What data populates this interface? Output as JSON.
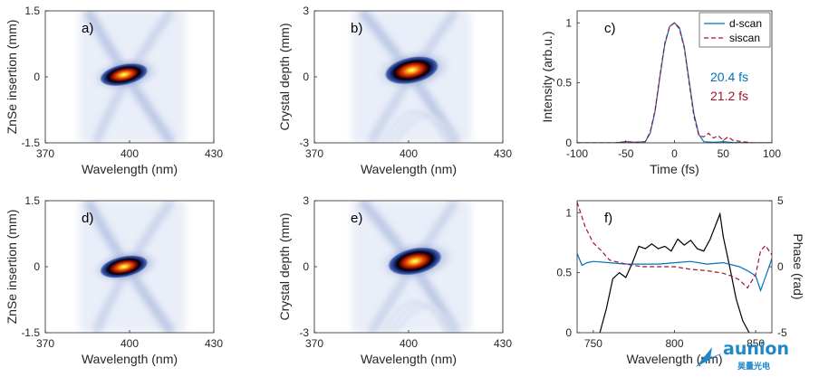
{
  "chart_data": [
    {
      "panel": "a)",
      "type": "heatmap",
      "xlabel": "Wavelength (nm)",
      "ylabel": "ZnSe insertion (mm)",
      "xlim": [
        370,
        430
      ],
      "ylim": [
        -1.5,
        1.5
      ],
      "xticks": [
        "370",
        "400",
        "430"
      ],
      "yticks": [
        "1.5",
        "0",
        "-1.5"
      ],
      "peak": {
        "x": 398,
        "y": 0.05
      }
    },
    {
      "panel": "b)",
      "type": "heatmap",
      "xlabel": "Wavelength (nm)",
      "ylabel": "Crystal depth (mm)",
      "xlim": [
        370,
        430
      ],
      "ylim": [
        -3,
        3
      ],
      "xticks": [
        "370",
        "400",
        "430"
      ],
      "yticks": [
        "3",
        "0",
        "-3"
      ],
      "peak": {
        "x": 401,
        "y": 0.3
      }
    },
    {
      "panel": "c)",
      "type": "line",
      "xlabel": "Time (fs)",
      "ylabel": "Intensity (arb.u.)",
      "xlim": [
        -100,
        100
      ],
      "ylim": [
        0,
        1.1
      ],
      "xticks": [
        "-100",
        "-50",
        "0",
        "50",
        "100"
      ],
      "yticks": [
        "1",
        "0.5",
        "0"
      ],
      "legend": [
        "d-scan",
        "siscan"
      ],
      "annotations": [
        {
          "text": "20.4 fs",
          "color": "#0072BD"
        },
        {
          "text": "21.2 fs",
          "color": "#A2142F"
        }
      ],
      "series": [
        {
          "name": "d-scan",
          "color": "#0072BD",
          "style": "solid",
          "x": [
            -100,
            -80,
            -60,
            -50,
            -40,
            -30,
            -25,
            -20,
            -15,
            -10,
            -5,
            0,
            5,
            10,
            15,
            20,
            25,
            30,
            40,
            50,
            60,
            80,
            100
          ],
          "y": [
            0,
            0,
            0,
            0.01,
            0.005,
            0.01,
            0.08,
            0.26,
            0.55,
            0.82,
            0.97,
            1.0,
            0.96,
            0.8,
            0.52,
            0.24,
            0.07,
            0.01,
            0.005,
            0.01,
            0.003,
            0,
            0
          ]
        },
        {
          "name": "siscan",
          "color": "#A2142F",
          "style": "dashed",
          "x": [
            -100,
            -80,
            -60,
            -50,
            -40,
            -30,
            -25,
            -20,
            -15,
            -10,
            -5,
            0,
            5,
            10,
            15,
            20,
            25,
            30,
            35,
            40,
            45,
            50,
            55,
            60,
            70,
            80,
            100
          ],
          "y": [
            0,
            0,
            0,
            0.01,
            0.005,
            0.01,
            0.09,
            0.27,
            0.56,
            0.83,
            0.97,
            1.0,
            0.95,
            0.79,
            0.5,
            0.22,
            0.06,
            0.05,
            0.08,
            0.04,
            0.06,
            0.02,
            0.05,
            0.02,
            0.01,
            0,
            0
          ]
        }
      ]
    },
    {
      "panel": "d)",
      "type": "heatmap",
      "xlabel": "Wavelength (nm)",
      "ylabel": "ZnSe insertion (mm)",
      "xlim": [
        370,
        430
      ],
      "ylim": [
        -1.5,
        1.5
      ],
      "xticks": [
        "370",
        "400",
        "430"
      ],
      "yticks": [
        "1.5",
        "0",
        "-1.5"
      ],
      "peak": {
        "x": 398,
        "y": 0.0
      }
    },
    {
      "panel": "e)",
      "type": "heatmap",
      "xlabel": "Wavelength (nm)",
      "ylabel": "Crystal depth (mm)",
      "xlim": [
        370,
        430
      ],
      "ylim": [
        -3,
        3
      ],
      "xticks": [
        "370",
        "400",
        "430"
      ],
      "yticks": [
        "3",
        "0",
        "-3"
      ],
      "peak": {
        "x": 402,
        "y": 0.25
      }
    },
    {
      "panel": "f)",
      "type": "line",
      "xlabel": "Wavelength (nm)",
      "ylabel": "",
      "y2label": "Phase (rad)",
      "xlim": [
        740,
        860
      ],
      "ylim": [
        0,
        1.1
      ],
      "y2lim": [
        -5,
        5
      ],
      "xticks": [
        "750",
        "800",
        "850"
      ],
      "yticks": [
        "1",
        "0.5",
        "0"
      ],
      "y2ticks": [
        "5",
        "0",
        "-5"
      ],
      "series": [
        {
          "name": "spectrum",
          "axis": "left",
          "color": "#000000",
          "style": "solid",
          "x": [
            754,
            758,
            762,
            766,
            770,
            774,
            778,
            782,
            786,
            790,
            794,
            798,
            802,
            806,
            810,
            814,
            818,
            822,
            826,
            828,
            830,
            834,
            838,
            842,
            846
          ],
          "y": [
            0.0,
            0.2,
            0.45,
            0.5,
            0.46,
            0.58,
            0.72,
            0.7,
            0.74,
            0.7,
            0.72,
            0.68,
            0.78,
            0.73,
            0.77,
            0.7,
            0.68,
            0.78,
            0.92,
            0.99,
            0.8,
            0.55,
            0.28,
            0.1,
            0.0
          ]
        },
        {
          "name": "phase d-scan",
          "axis": "right",
          "color": "#0072BD",
          "style": "solid",
          "x": [
            740,
            743,
            746,
            750,
            760,
            770,
            780,
            790,
            800,
            810,
            820,
            830,
            840,
            845,
            850,
            853,
            856,
            860
          ],
          "y": [
            1.0,
            0.1,
            0.3,
            0.4,
            0.3,
            0.2,
            0.2,
            0.2,
            0.3,
            0.4,
            0.2,
            0.3,
            0.0,
            -0.3,
            -0.7,
            -1.8,
            -0.8,
            0.6
          ]
        },
        {
          "name": "phase siscan",
          "axis": "right",
          "color": "#A2142F",
          "style": "dashed",
          "x": [
            740,
            745,
            750,
            755,
            760,
            770,
            780,
            790,
            800,
            810,
            820,
            830,
            835,
            840,
            845,
            850,
            853,
            856,
            860
          ],
          "y": [
            4.9,
            3.0,
            1.8,
            1.2,
            0.5,
            0.2,
            0.0,
            0.0,
            0.0,
            -0.2,
            -0.3,
            -0.5,
            -0.7,
            -1.0,
            -1.6,
            -0.6,
            1.2,
            1.6,
            0.9
          ]
        }
      ]
    }
  ],
  "watermark": {
    "brand": "aunion",
    "sub": "昊量光电",
    "color": "#1E88C8"
  }
}
